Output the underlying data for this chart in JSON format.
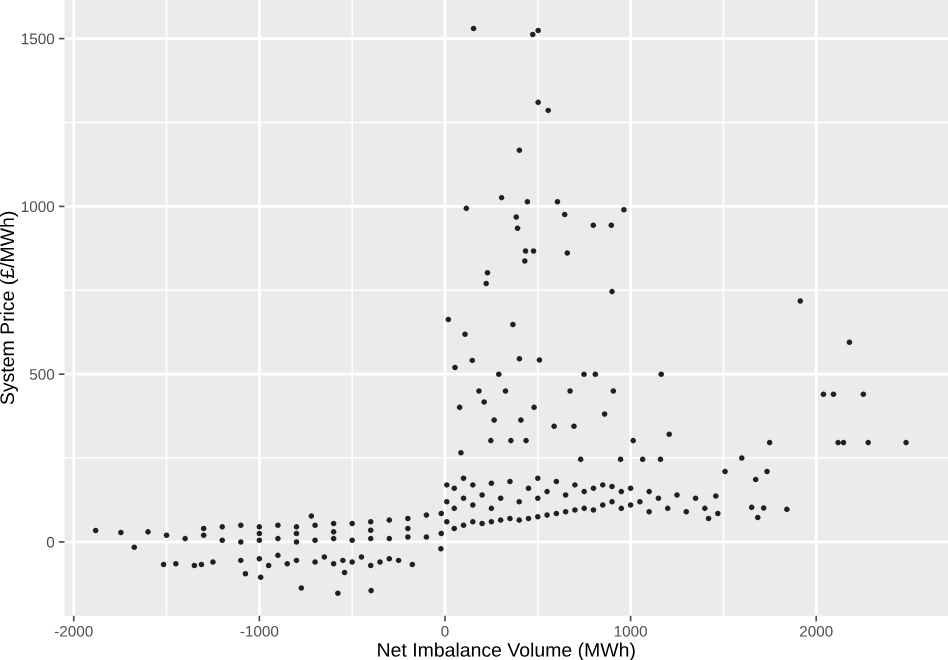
{
  "chart_data": {
    "type": "scatter",
    "xlabel": "Net Imbalance Volume (MWh)",
    "ylabel": "System Price (£/MWh)",
    "xlim": [
      -2050,
      2710
    ],
    "ylim": [
      -220,
      1615
    ],
    "xticks": [
      -2000,
      -1000,
      0,
      1000,
      2000
    ],
    "yticks": [
      0,
      500,
      1000,
      1500
    ],
    "grid": true,
    "marker": "circle",
    "series": [
      {
        "color": "#231f20",
        "x": [
          154,
          473,
          502,
          502,
          556,
          401,
          305,
          115,
          444,
          606,
          645,
          384,
          391,
          799,
          896,
          964,
          434,
          477,
          430,
          659,
          229,
          222,
          900,
          1914,
          2179,
          2039,
          2093,
          2254,
          2118,
          2147,
          2280,
          2484,
          18,
          108,
          366,
          54,
          147,
          401,
          509,
          290,
          749,
          810,
          1165,
          183,
          326,
          674,
          907,
          1599,
          1509,
          1749,
          1735,
          1208,
          1014,
          1674,
          1842,
          1717,
          1652,
          1685,
          1470,
          1459,
          1161,
          1065,
          211,
          265,
          409,
          79,
          480,
          860,
          86,
          247,
          355,
          588,
          695,
          437,
          731,
          946,
          -1882,
          -1674,
          -1746,
          -1516,
          -1312,
          -1075,
          -993,
          -774,
          -577,
          -398,
          -720,
          -176,
          -541,
          -22,
          -1600,
          -1500,
          -1400,
          -1300,
          -1200,
          -1200,
          -1100,
          -1100,
          -1000,
          -1000,
          -900,
          -900,
          -800,
          -800,
          -700,
          -700,
          -600,
          -600,
          -500,
          -500,
          -400,
          -400,
          -300,
          -300,
          -200,
          -200,
          -100,
          -100,
          -20,
          -20,
          -1000,
          -800,
          -600,
          -400,
          -200,
          -1300,
          -1450,
          -1350,
          -1250,
          -1100,
          -1000,
          -950,
          -900,
          -850,
          -800,
          -700,
          -650,
          -600,
          -550,
          -500,
          -450,
          -400,
          -350,
          -300,
          -250,
          10,
          10,
          10,
          50,
          50,
          50,
          100,
          100,
          100,
          150,
          150,
          150,
          200,
          200,
          250,
          250,
          250,
          300,
          300,
          350,
          350,
          400,
          400,
          450,
          450,
          500,
          500,
          500,
          550,
          550,
          600,
          600,
          650,
          650,
          700,
          700,
          750,
          750,
          800,
          800,
          850,
          850,
          900,
          900,
          950,
          950,
          1000,
          1000,
          1050,
          1100,
          1100,
          1150,
          1200,
          1250,
          1300,
          1350,
          1400,
          1420
        ],
        "values": [
          1530,
          1512,
          1524,
          1310,
          1286,
          1167,
          1026,
          994,
          1014,
          1014,
          976,
          968,
          935,
          944,
          944,
          990,
          867,
          867,
          837,
          861,
          802,
          770,
          746,
          718,
          595,
          440,
          440,
          440,
          296,
          296,
          296,
          296,
          663,
          619,
          648,
          520,
          541,
          546,
          542,
          500,
          500,
          500,
          500,
          450,
          450,
          450,
          450,
          250,
          210,
          296,
          210,
          321,
          302,
          186,
          97,
          101,
          103,
          73,
          85,
          137,
          246,
          246,
          417,
          363,
          363,
          401,
          401,
          381,
          266,
          302,
          302,
          345,
          345,
          302,
          246,
          246,
          34,
          -16,
          28,
          -67,
          -67,
          -95,
          -105,
          -137,
          -153,
          -145,
          77,
          -67,
          -91,
          -20,
          30,
          20,
          10,
          40,
          5,
          45,
          0,
          50,
          5,
          45,
          10,
          50,
          0,
          45,
          5,
          50,
          10,
          55,
          5,
          55,
          10,
          60,
          10,
          65,
          15,
          70,
          15,
          80,
          25,
          85,
          25,
          25,
          30,
          35,
          40,
          20,
          -65,
          -70,
          -60,
          -55,
          -50,
          -70,
          -40,
          -65,
          -55,
          -60,
          -45,
          -65,
          -55,
          -60,
          -45,
          -70,
          -60,
          -50,
          -55,
          60,
          120,
          170,
          40,
          100,
          160,
          50,
          130,
          190,
          60,
          110,
          170,
          55,
          140,
          60,
          100,
          175,
          65,
          130,
          70,
          180,
          65,
          120,
          70,
          160,
          75,
          130,
          190,
          80,
          150,
          85,
          180,
          90,
          140,
          95,
          170,
          100,
          150,
          95,
          160,
          110,
          170,
          120,
          165,
          100,
          150,
          110,
          160,
          120,
          90,
          150,
          130,
          100,
          140,
          90,
          130,
          100,
          70
        ]
      }
    ]
  }
}
